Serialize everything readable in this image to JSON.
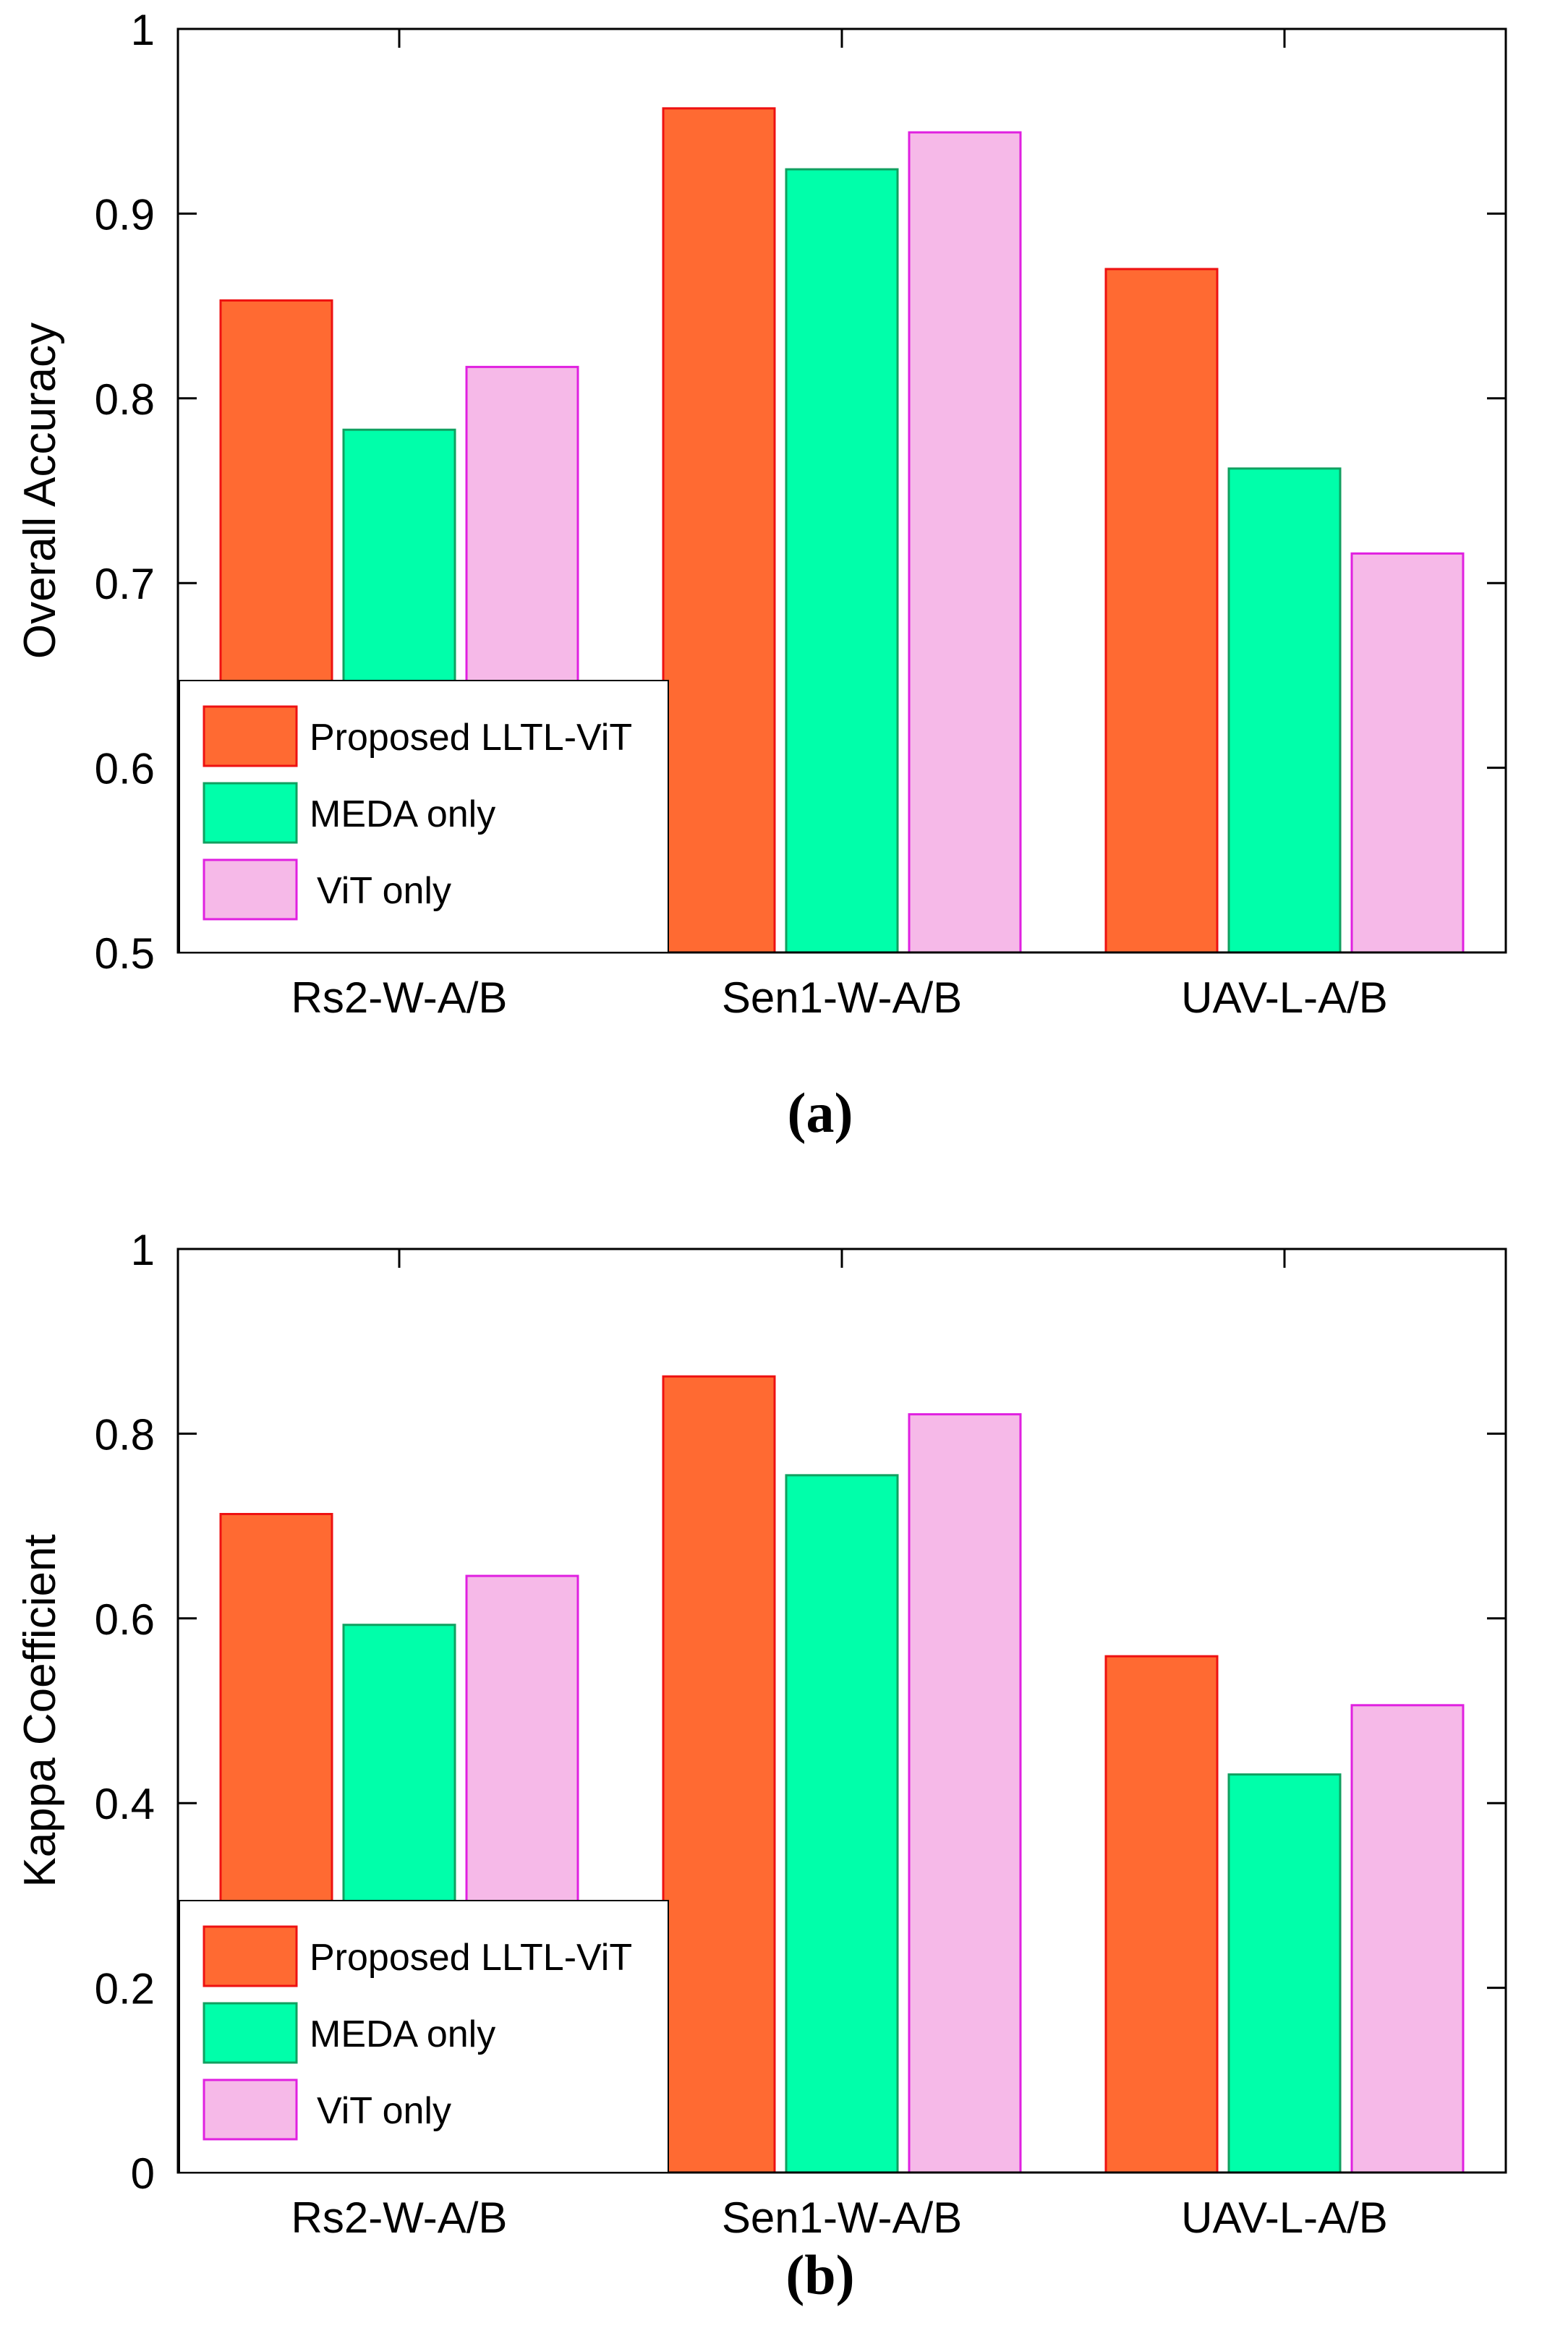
{
  "chart_data": [
    {
      "type": "bar",
      "panel_label": "(a)",
      "categories": [
        "Rs2-W-A/B",
        "Sen1-W-A/B",
        "UAV-L-A/B"
      ],
      "series": [
        {
          "name": "Proposed LLTL-ViT",
          "values": [
            0.853,
            0.957,
            0.87
          ],
          "color": "#ff6a32",
          "edge": "#ee1111"
        },
        {
          "name": "MEDA only",
          "values": [
            0.783,
            0.924,
            0.762
          ],
          "color": "#00ffaa",
          "edge": "#10a060"
        },
        {
          "name": "ViT only",
          "values": [
            0.817,
            0.944,
            0.716
          ],
          "color": "#f6b9e8",
          "edge": "#e020e0"
        }
      ],
      "ylabel": "Overall  Accuracy",
      "ylim": [
        0.5,
        1
      ],
      "yticks": [
        0.5,
        0.6,
        0.7,
        0.8,
        0.9,
        1
      ],
      "ytick_labels": [
        "0.5",
        "0.6",
        "0.7",
        "0.8",
        "0.9",
        "1"
      ],
      "legend_position": "bottom-left"
    },
    {
      "type": "bar",
      "panel_label": "(b)",
      "categories": [
        "Rs2-W-A/B",
        "Sen1-W-A/B",
        "UAV-L-A/B"
      ],
      "series": [
        {
          "name": "Proposed LLTL-ViT",
          "values": [
            0.713,
            0.862,
            0.559
          ],
          "color": "#ff6a32",
          "edge": "#ee1111"
        },
        {
          "name": "MEDA only",
          "values": [
            0.593,
            0.755,
            0.431
          ],
          "color": "#00ffaa",
          "edge": "#10a060"
        },
        {
          "name": "ViT only",
          "values": [
            0.646,
            0.821,
            0.506
          ],
          "color": "#f6b9e8",
          "edge": "#e020e0"
        }
      ],
      "ylabel": "Kappa Coefficient",
      "ylim": [
        0,
        1
      ],
      "yticks": [
        0,
        0.2,
        0.4,
        0.6,
        0.8,
        1
      ],
      "ytick_labels": [
        "0",
        "0.2",
        "0.4",
        "0.6",
        "0.8",
        "1"
      ],
      "legend_position": "bottom-left"
    }
  ]
}
